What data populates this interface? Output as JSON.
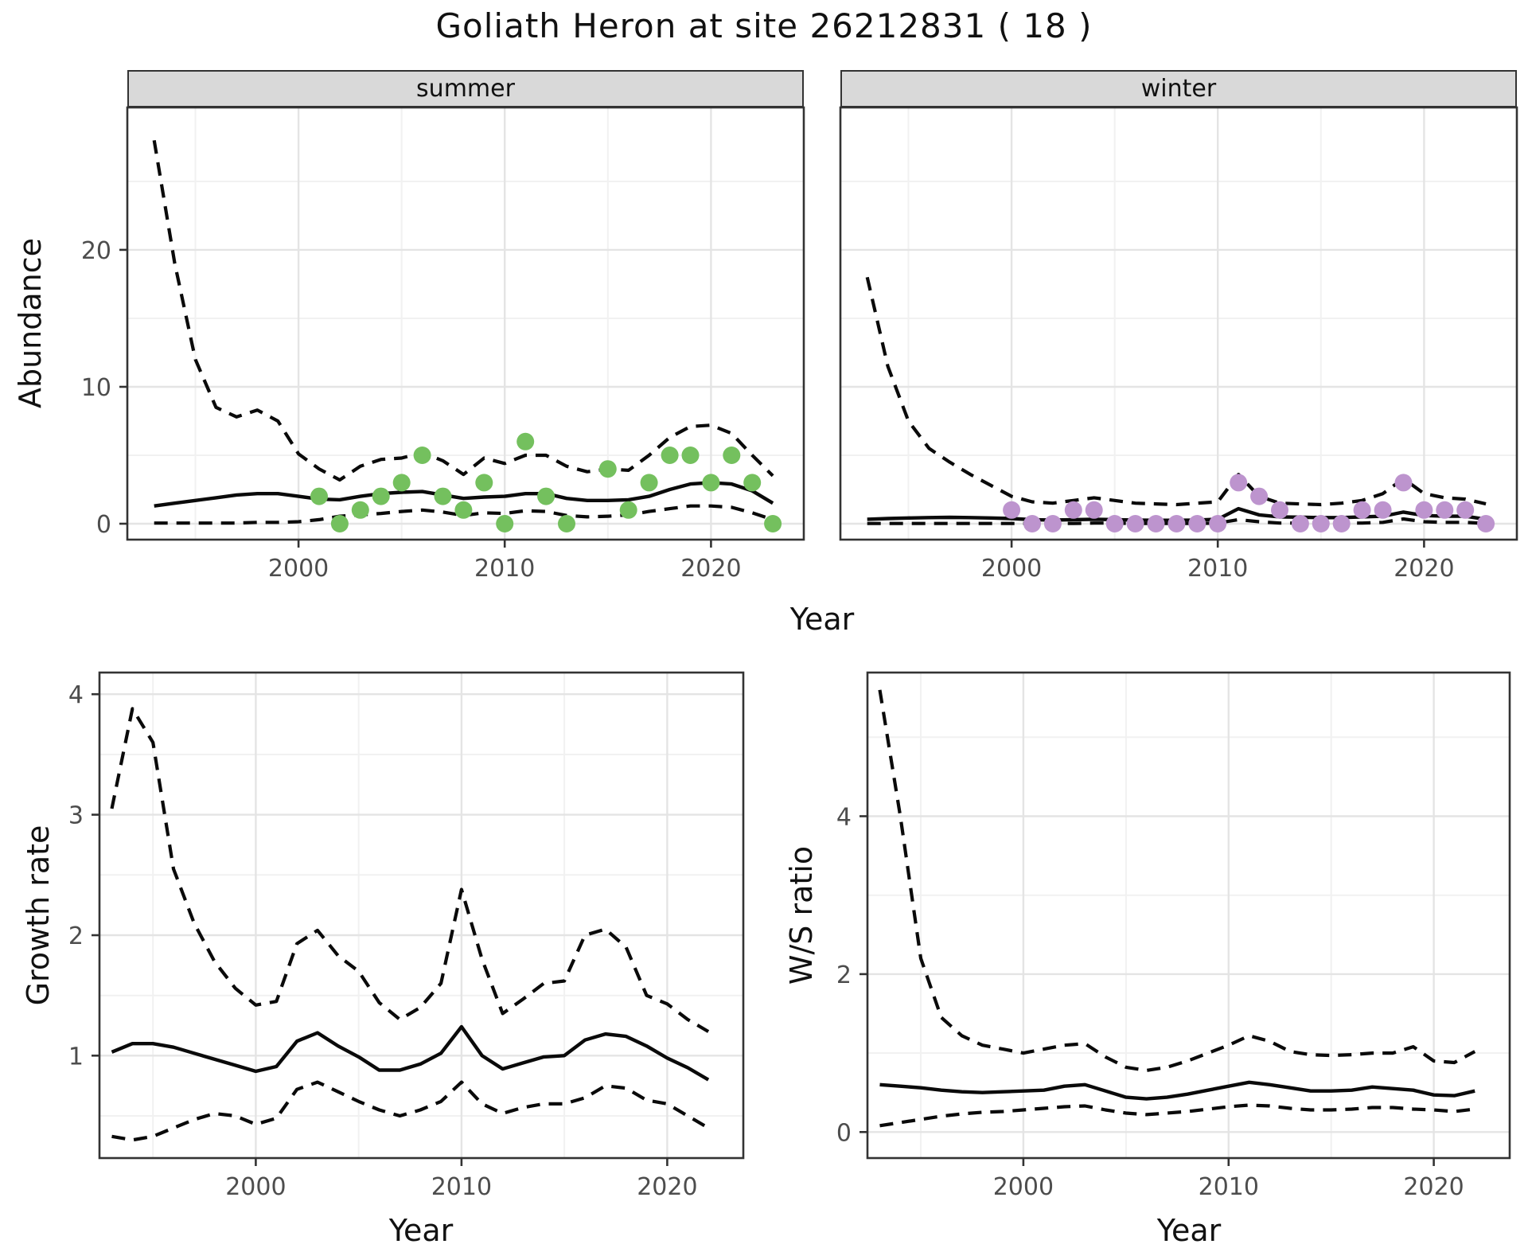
{
  "title": "Goliath Heron at site 26212831 ( 18 )",
  "labels": {
    "year": "Year",
    "abundance": "Abundance",
    "growth": "Growth rate",
    "ws": "W/S ratio"
  },
  "facets": [
    {
      "label": "summer"
    },
    {
      "label": "winter"
    }
  ],
  "colors": {
    "summer_point": "#74c05e",
    "winter_point": "#bd94ce",
    "line": "#0a0a0a",
    "grid_major": "#e4e4e4",
    "grid_minor": "#f1f1f1",
    "panel_border": "#333333",
    "strip_bg": "#d9d9d9",
    "axis_text": "#4d4d4d"
  },
  "chart_data": [
    {
      "id": "abundance-summer",
      "type": "line",
      "facet": "summer",
      "xlabel": "Year",
      "ylabel": "Abundance",
      "x_range": [
        1991.7,
        2024.5
      ],
      "y_range": [
        -1.16,
        30.4
      ],
      "x_ticks": [
        2000,
        2010,
        2020
      ],
      "x_minor": [
        1995,
        2005,
        2015
      ],
      "y_ticks": [
        0,
        10,
        20
      ],
      "y_minor": [
        5,
        15,
        25
      ],
      "years": [
        1993,
        1994,
        1995,
        1996,
        1997,
        1998,
        1999,
        2000,
        2001,
        2002,
        2003,
        2004,
        2005,
        2006,
        2007,
        2008,
        2009,
        2010,
        2011,
        2012,
        2013,
        2014,
        2015,
        2016,
        2017,
        2018,
        2019,
        2020,
        2021,
        2022,
        2023
      ],
      "mean": [
        1.3,
        1.5,
        1.7,
        1.9,
        2.1,
        2.2,
        2.2,
        2.0,
        1.8,
        1.75,
        2.0,
        2.2,
        2.3,
        2.35,
        2.1,
        1.85,
        1.95,
        2.0,
        2.2,
        2.2,
        1.85,
        1.7,
        1.7,
        1.75,
        2.0,
        2.5,
        2.9,
        3.0,
        2.9,
        2.4,
        1.5
      ],
      "upper95": [
        28,
        19,
        12,
        8.5,
        7.8,
        8.3,
        7.5,
        5.1,
        4.0,
        3.2,
        4.2,
        4.7,
        4.8,
        5.2,
        4.6,
        3.6,
        4.8,
        4.4,
        5.0,
        5.0,
        4.2,
        3.8,
        4.0,
        3.9,
        5.0,
        6.3,
        7.1,
        7.2,
        6.6,
        5.0,
        3.5
      ],
      "lower95": [
        0.05,
        0.05,
        0.05,
        0.05,
        0.05,
        0.1,
        0.1,
        0.15,
        0.3,
        0.55,
        0.65,
        0.75,
        0.9,
        1.0,
        0.85,
        0.6,
        0.8,
        0.75,
        0.95,
        0.9,
        0.6,
        0.5,
        0.55,
        0.65,
        0.9,
        1.1,
        1.3,
        1.3,
        1.2,
        0.8,
        0.3
      ],
      "obs_years": [
        2001,
        2002,
        2003,
        2004,
        2005,
        2006,
        2007,
        2008,
        2009,
        2010,
        2011,
        2012,
        2013,
        2015,
        2016,
        2017,
        2018,
        2019,
        2020,
        2021,
        2022,
        2023
      ],
      "obs": [
        2,
        0,
        1,
        2,
        3,
        5,
        2,
        1,
        3,
        0,
        6,
        2,
        0,
        4,
        1,
        3,
        5,
        5,
        3,
        5,
        3,
        0
      ],
      "point_color": "#74c05e"
    },
    {
      "id": "abundance-winter",
      "type": "line",
      "facet": "winter",
      "xlabel": "Year",
      "ylabel": "Abundance",
      "x_range": [
        1991.7,
        2024.5
      ],
      "y_range": [
        -1.16,
        30.4
      ],
      "x_ticks": [
        2000,
        2010,
        2020
      ],
      "x_minor": [
        1995,
        2005,
        2015
      ],
      "y_ticks": [
        0,
        10,
        20
      ],
      "y_minor": [
        5,
        15,
        25
      ],
      "years": [
        1993,
        1994,
        1995,
        1996,
        1997,
        1998,
        1999,
        2000,
        2001,
        2002,
        2003,
        2004,
        2005,
        2006,
        2007,
        2008,
        2009,
        2010,
        2011,
        2012,
        2013,
        2014,
        2015,
        2016,
        2017,
        2018,
        2019,
        2020,
        2021,
        2022,
        2023
      ],
      "mean": [
        0.33,
        0.38,
        0.42,
        0.45,
        0.47,
        0.45,
        0.42,
        0.38,
        0.3,
        0.27,
        0.3,
        0.33,
        0.3,
        0.27,
        0.25,
        0.25,
        0.27,
        0.33,
        1.1,
        0.65,
        0.5,
        0.48,
        0.45,
        0.45,
        0.5,
        0.55,
        0.85,
        0.6,
        0.55,
        0.55,
        0.33
      ],
      "upper95": [
        18,
        11.5,
        7.5,
        5.5,
        4.5,
        3.6,
        2.8,
        2.0,
        1.6,
        1.5,
        1.7,
        1.9,
        1.7,
        1.5,
        1.45,
        1.4,
        1.5,
        1.6,
        3.6,
        2.0,
        1.5,
        1.45,
        1.4,
        1.5,
        1.7,
        2.2,
        3.3,
        2.2,
        1.9,
        1.8,
        1.45
      ],
      "lower95": [
        0.02,
        0.02,
        0.02,
        0.02,
        0.02,
        0.02,
        0.02,
        0.02,
        0.02,
        0.02,
        0.02,
        0.05,
        0.05,
        0.02,
        0.02,
        0.02,
        0.02,
        0.05,
        0.3,
        0.15,
        0.05,
        0.05,
        0.05,
        0.05,
        0.05,
        0.1,
        0.35,
        0.15,
        0.1,
        0.1,
        0.02
      ],
      "obs_years": [
        2000,
        2001,
        2002,
        2003,
        2004,
        2005,
        2006,
        2007,
        2008,
        2009,
        2010,
        2011,
        2012,
        2013,
        2014,
        2015,
        2016,
        2017,
        2018,
        2019,
        2020,
        2021,
        2022,
        2023
      ],
      "obs": [
        1,
        0,
        0,
        1,
        1,
        0,
        0,
        0,
        0,
        0,
        0,
        3,
        2,
        1,
        0,
        0,
        0,
        1,
        1,
        3,
        1,
        1,
        1,
        0
      ],
      "point_color": "#bd94ce"
    },
    {
      "id": "growth-rate",
      "type": "line",
      "facet": null,
      "xlabel": "Year",
      "ylabel": "Growth rate",
      "x_range": [
        1992.4,
        2023.7
      ],
      "y_range": [
        0.15,
        4.18
      ],
      "x_ticks": [
        2000,
        2010,
        2020
      ],
      "x_minor": [
        1995,
        2005,
        2015
      ],
      "y_ticks": [
        1,
        2,
        3,
        4
      ],
      "y_minor": [
        0.5,
        1.5,
        2.5,
        3.5
      ],
      "years": [
        1993,
        1994,
        1995,
        1996,
        1997,
        1998,
        1999,
        2000,
        2001,
        2002,
        2003,
        2004,
        2005,
        2006,
        2007,
        2008,
        2009,
        2010,
        2011,
        2012,
        2013,
        2014,
        2015,
        2016,
        2017,
        2018,
        2019,
        2020,
        2021,
        2022
      ],
      "mean": [
        1.03,
        1.1,
        1.1,
        1.07,
        1.02,
        0.97,
        0.92,
        0.87,
        0.91,
        1.12,
        1.19,
        1.08,
        0.99,
        0.88,
        0.88,
        0.93,
        1.02,
        1.24,
        1.0,
        0.89,
        0.94,
        0.99,
        1.0,
        1.13,
        1.18,
        1.16,
        1.08,
        0.98,
        0.9,
        0.8
      ],
      "upper95": [
        3.05,
        3.88,
        3.6,
        2.55,
        2.1,
        1.78,
        1.56,
        1.42,
        1.45,
        1.93,
        2.04,
        1.83,
        1.7,
        1.44,
        1.3,
        1.4,
        1.6,
        2.38,
        1.8,
        1.35,
        1.47,
        1.6,
        1.62,
        2.0,
        2.05,
        1.9,
        1.5,
        1.43,
        1.3,
        1.2
      ],
      "lower95": [
        0.33,
        0.3,
        0.33,
        0.4,
        0.47,
        0.52,
        0.5,
        0.43,
        0.48,
        0.72,
        0.78,
        0.7,
        0.62,
        0.55,
        0.5,
        0.55,
        0.62,
        0.78,
        0.6,
        0.52,
        0.57,
        0.6,
        0.6,
        0.65,
        0.75,
        0.73,
        0.63,
        0.6,
        0.5,
        0.4
      ],
      "obs_years": [],
      "obs": [],
      "point_color": null
    },
    {
      "id": "ws-ratio",
      "type": "line",
      "facet": null,
      "xlabel": "Year",
      "ylabel": "W/S ratio",
      "x_range": [
        1992.4,
        2023.7
      ],
      "y_range": [
        -0.33,
        5.82
      ],
      "x_ticks": [
        2000,
        2010,
        2020
      ],
      "x_minor": [
        1995,
        2005,
        2015
      ],
      "y_ticks": [
        0,
        2,
        4
      ],
      "y_minor": [
        1,
        3,
        5
      ],
      "years": [
        1993,
        1994,
        1995,
        1996,
        1997,
        1998,
        1999,
        2000,
        2001,
        2002,
        2003,
        2004,
        2005,
        2006,
        2007,
        2008,
        2009,
        2010,
        2011,
        2012,
        2013,
        2014,
        2015,
        2016,
        2017,
        2018,
        2019,
        2020,
        2021,
        2022
      ],
      "mean": [
        0.6,
        0.58,
        0.56,
        0.53,
        0.51,
        0.5,
        0.51,
        0.52,
        0.53,
        0.58,
        0.6,
        0.52,
        0.44,
        0.42,
        0.44,
        0.48,
        0.53,
        0.58,
        0.63,
        0.6,
        0.56,
        0.52,
        0.52,
        0.53,
        0.57,
        0.55,
        0.53,
        0.47,
        0.46,
        0.52
      ],
      "upper95": [
        5.6,
        4.0,
        2.2,
        1.45,
        1.22,
        1.1,
        1.05,
        1.0,
        1.05,
        1.1,
        1.12,
        0.95,
        0.82,
        0.78,
        0.82,
        0.9,
        1.0,
        1.1,
        1.22,
        1.15,
        1.02,
        0.98,
        0.97,
        0.98,
        1.0,
        1.0,
        1.08,
        0.9,
        0.88,
        1.02
      ],
      "lower95": [
        0.08,
        0.12,
        0.16,
        0.2,
        0.23,
        0.25,
        0.26,
        0.28,
        0.3,
        0.32,
        0.33,
        0.28,
        0.24,
        0.22,
        0.24,
        0.26,
        0.29,
        0.32,
        0.34,
        0.33,
        0.3,
        0.28,
        0.28,
        0.29,
        0.31,
        0.31,
        0.29,
        0.28,
        0.26,
        0.29
      ],
      "obs_years": [],
      "obs": [],
      "point_color": null
    }
  ]
}
